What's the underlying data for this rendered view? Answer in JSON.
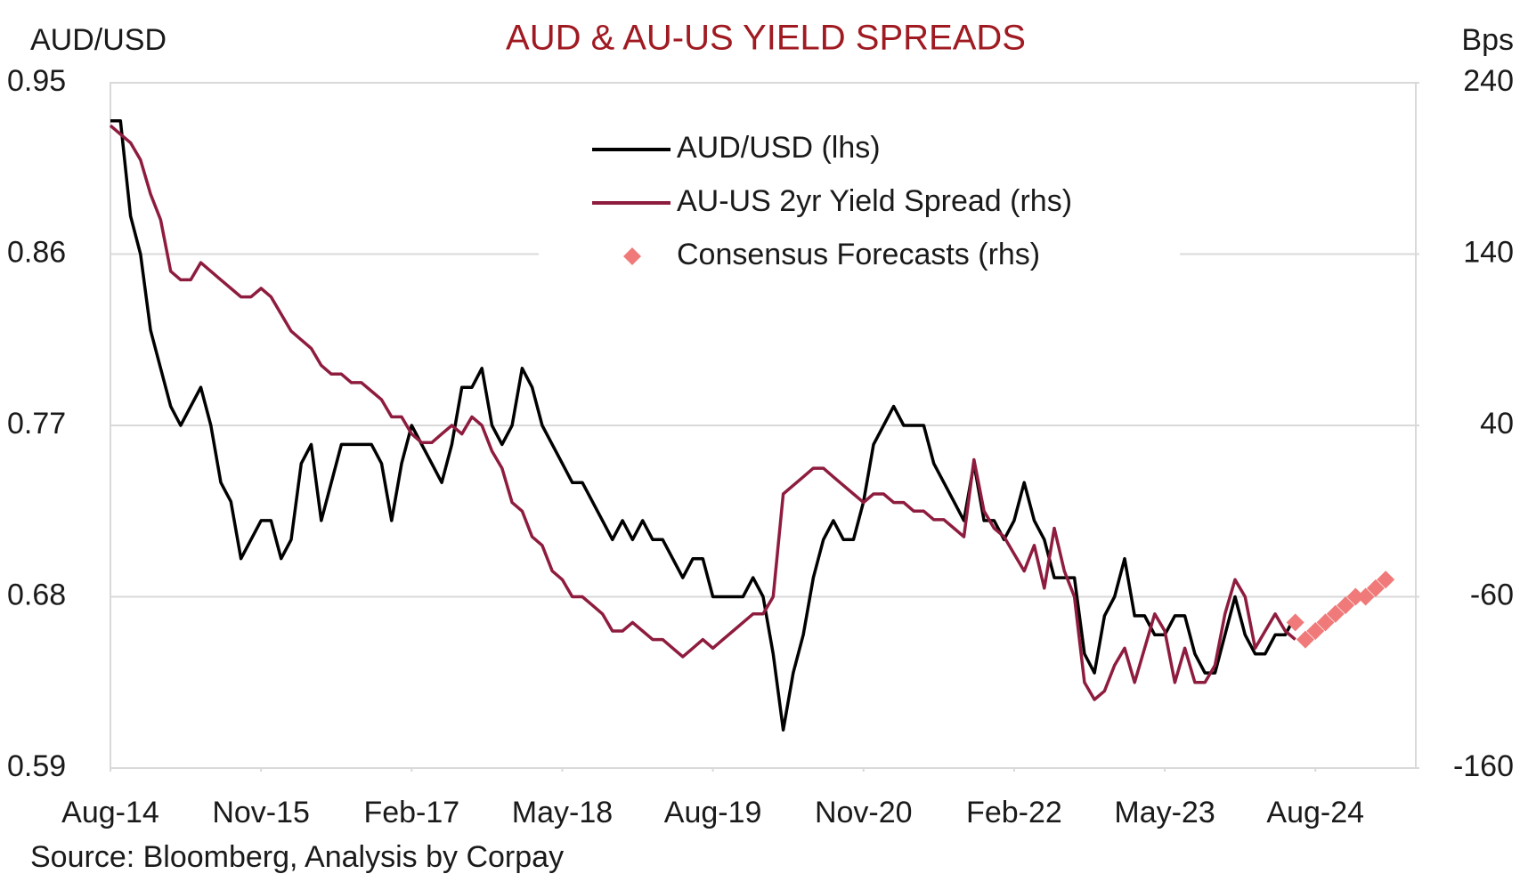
{
  "chart_data": {
    "type": "line",
    "title": "AUD & AU-US YIELD SPREADS",
    "y_label": "AUD/USD",
    "y2_label": "Bps",
    "source": "Source: Bloomberg, Analysis by Corpay",
    "x": [
      "2014-08",
      "2014-09",
      "2014-10",
      "2014-11",
      "2014-12",
      "2015-01",
      "2015-02",
      "2015-03",
      "2015-04",
      "2015-05",
      "2015-06",
      "2015-07",
      "2015-08",
      "2015-09",
      "2015-10",
      "2015-11",
      "2015-12",
      "2016-01",
      "2016-02",
      "2016-03",
      "2016-04",
      "2016-05",
      "2016-06",
      "2016-07",
      "2016-08",
      "2016-09",
      "2016-10",
      "2016-11",
      "2016-12",
      "2017-01",
      "2017-02",
      "2017-03",
      "2017-04",
      "2017-05",
      "2017-06",
      "2017-07",
      "2017-08",
      "2017-09",
      "2017-10",
      "2017-11",
      "2017-12",
      "2018-01",
      "2018-02",
      "2018-03",
      "2018-04",
      "2018-05",
      "2018-06",
      "2018-07",
      "2018-08",
      "2018-09",
      "2018-10",
      "2018-11",
      "2018-12",
      "2019-01",
      "2019-02",
      "2019-03",
      "2019-04",
      "2019-05",
      "2019-06",
      "2019-07",
      "2019-08",
      "2019-09",
      "2019-10",
      "2019-11",
      "2019-12",
      "2020-01",
      "2020-02",
      "2020-03",
      "2020-04",
      "2020-05",
      "2020-06",
      "2020-07",
      "2020-08",
      "2020-09",
      "2020-10",
      "2020-11",
      "2020-12",
      "2021-01",
      "2021-02",
      "2021-03",
      "2021-04",
      "2021-05",
      "2021-06",
      "2021-07",
      "2021-08",
      "2021-09",
      "2021-10",
      "2021-11",
      "2021-12",
      "2022-01",
      "2022-02",
      "2022-03",
      "2022-04",
      "2022-05",
      "2022-06",
      "2022-07",
      "2022-08",
      "2022-09",
      "2022-10",
      "2022-11",
      "2022-12",
      "2023-01",
      "2023-02",
      "2023-03",
      "2023-04",
      "2023-05",
      "2023-06",
      "2023-07",
      "2023-08",
      "2023-09",
      "2023-10",
      "2023-11",
      "2023-12",
      "2024-01",
      "2024-02",
      "2024-03",
      "2024-04",
      "2024-05",
      "2024-06"
    ],
    "series": [
      {
        "name": "AUD/USD (lhs)",
        "color": "#000000",
        "axis": "y",
        "values": [
          0.93,
          0.93,
          0.88,
          0.86,
          0.82,
          0.8,
          0.78,
          0.77,
          0.78,
          0.79,
          0.77,
          0.74,
          0.73,
          0.7,
          0.71,
          0.72,
          0.72,
          0.7,
          0.71,
          0.75,
          0.76,
          0.72,
          0.74,
          0.76,
          0.76,
          0.76,
          0.76,
          0.75,
          0.72,
          0.75,
          0.77,
          0.76,
          0.75,
          0.74,
          0.76,
          0.79,
          0.79,
          0.8,
          0.77,
          0.76,
          0.77,
          0.8,
          0.79,
          0.77,
          0.76,
          0.75,
          0.74,
          0.74,
          0.73,
          0.72,
          0.71,
          0.72,
          0.71,
          0.72,
          0.71,
          0.71,
          0.7,
          0.69,
          0.7,
          0.7,
          0.68,
          0.68,
          0.68,
          0.68,
          0.69,
          0.68,
          0.65,
          0.61,
          0.64,
          0.66,
          0.69,
          0.71,
          0.72,
          0.71,
          0.71,
          0.73,
          0.76,
          0.77,
          0.78,
          0.77,
          0.77,
          0.77,
          0.75,
          0.74,
          0.73,
          0.72,
          0.75,
          0.72,
          0.72,
          0.71,
          0.72,
          0.74,
          0.72,
          0.71,
          0.69,
          0.69,
          0.69,
          0.65,
          0.64,
          0.67,
          0.68,
          0.7,
          0.67,
          0.67,
          0.66,
          0.66,
          0.67,
          0.67,
          0.65,
          0.64,
          0.64,
          0.66,
          0.68,
          0.66,
          0.65,
          0.65,
          0.66,
          0.66,
          0.67
        ]
      },
      {
        "name": "AU-US 2yr Yield Spread (rhs)",
        "color": "#8e1c3e",
        "axis": "y2",
        "values": [
          215,
          210,
          205,
          195,
          175,
          160,
          130,
          125,
          125,
          135,
          130,
          125,
          120,
          115,
          115,
          120,
          115,
          105,
          95,
          90,
          85,
          75,
          70,
          70,
          65,
          65,
          60,
          55,
          45,
          45,
          35,
          30,
          30,
          35,
          40,
          35,
          45,
          40,
          25,
          15,
          -5,
          -10,
          -25,
          -30,
          -45,
          -50,
          -60,
          -60,
          -65,
          -70,
          -80,
          -80,
          -75,
          -80,
          -85,
          -85,
          -90,
          -95,
          -90,
          -85,
          -90,
          -85,
          -80,
          -75,
          -70,
          -70,
          -60,
          0,
          5,
          10,
          15,
          15,
          10,
          5,
          0,
          -5,
          0,
          0,
          -5,
          -5,
          -10,
          -10,
          -15,
          -15,
          -20,
          -25,
          20,
          -10,
          -20,
          -25,
          -35,
          -45,
          -30,
          -55,
          -20,
          -45,
          -60,
          -110,
          -120,
          -115,
          -100,
          -90,
          -110,
          -90,
          -70,
          -80,
          -110,
          -90,
          -110,
          -110,
          -100,
          -70,
          -50,
          -60,
          -90,
          -80,
          -70,
          -80,
          -85
        ]
      },
      {
        "name": "Consensus Forecasts (rhs)",
        "color": "#f07a7a",
        "axis": "y2",
        "marker": "diamond",
        "x": [
          "2024-06",
          "2024-07",
          "2024-08",
          "2024-09",
          "2024-10",
          "2024-11",
          "2024-12",
          "2025-01",
          "2025-02",
          "2025-03"
        ],
        "values": [
          -75,
          -85,
          -80,
          -75,
          -70,
          -65,
          -60,
          -60,
          -55,
          -50
        ]
      }
    ],
    "xlim": [
      "2014-08",
      "2025-06"
    ],
    "xticks": [
      {
        "value": "2014-08",
        "label": "Aug-14"
      },
      {
        "value": "2015-11",
        "label": "Nov-15"
      },
      {
        "value": "2017-02",
        "label": "Feb-17"
      },
      {
        "value": "2018-05",
        "label": "May-18"
      },
      {
        "value": "2019-08",
        "label": "Aug-19"
      },
      {
        "value": "2020-11",
        "label": "Nov-20"
      },
      {
        "value": "2022-02",
        "label": "Feb-22"
      },
      {
        "value": "2023-05",
        "label": "May-23"
      },
      {
        "value": "2024-08",
        "label": "Aug-24"
      }
    ],
    "ylim": [
      0.59,
      0.95
    ],
    "yticks": [
      0.59,
      0.68,
      0.77,
      0.86,
      0.95
    ],
    "y2lim": [
      -160,
      240
    ],
    "y2ticks": [
      -160,
      -60,
      40,
      140,
      240
    ],
    "grid": true,
    "legend": "upper center"
  }
}
